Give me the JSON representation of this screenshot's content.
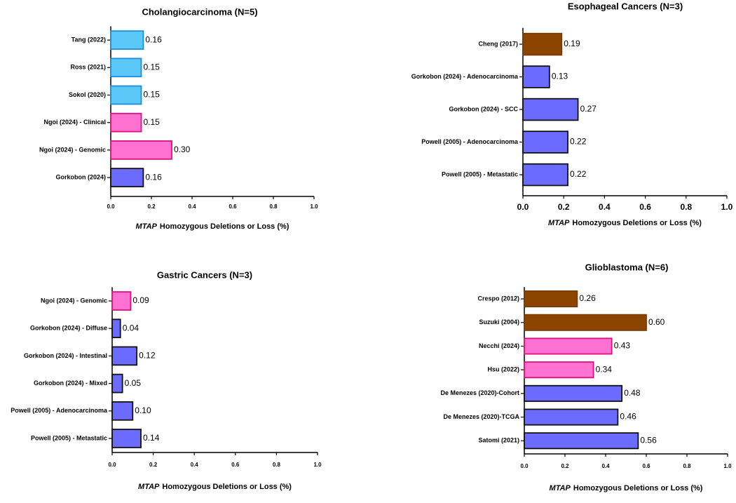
{
  "chart_data": [
    {
      "type": "bar",
      "orientation": "horizontal",
      "title": "Cholangiocarcinoma (N=5)",
      "categories": [
        "Tang (2022)",
        "Ross (2021)",
        "Sokol (2020)",
        "Ngoi (2024) - Clinical",
        "Ngoi (2024) - Genomic",
        "Gorkobon (2024)"
      ],
      "values": [
        0.16,
        0.15,
        0.15,
        0.15,
        0.3,
        0.16
      ],
      "value_labels": [
        "0.16",
        "0.15",
        "0.15",
        "0.15",
        "0.30",
        "0.16"
      ],
      "colors": [
        "#5cc8f7",
        "#5cc8f7",
        "#5cc8f7",
        "#ff72d2",
        "#ff72d2",
        "#6b6bff"
      ],
      "edgecolors": [
        "#1b8fd8",
        "#1b8fd8",
        "#1b8fd8",
        "#e0107f",
        "#e0107f",
        "#111111"
      ],
      "xlim": [
        0,
        1
      ],
      "xticks": [
        {
          "value": 0,
          "label": "0.0"
        },
        0.2,
        0.4,
        0.6,
        0.8,
        {
          "value": 1,
          "label": "1.0"
        }
      ],
      "xlabel": [
        "MTAP",
        "Homozygous Deletions or Loss (%)"
      ]
    },
    {
      "type": "bar",
      "orientation": "horizontal",
      "title": "Esophageal Cancers (N=3)",
      "categories": [
        "Cheng (2017)",
        "Gorkobon (2024) - Adenocarcinoma",
        "Gorkobon (2024) - SCC",
        "Powell (2005) - Adenocarcinoma",
        "Powell (2005) - Metastatic"
      ],
      "values": [
        0.19,
        0.13,
        0.27,
        0.22,
        0.22
      ],
      "value_labels": [
        "0.19",
        "0.13",
        "0.27",
        "0.22",
        "0.22"
      ],
      "colors": [
        "#8b4500",
        "#6b6bff",
        "#6b6bff",
        "#6b6bff",
        "#6b6bff"
      ],
      "edgecolors": [
        "#7a3c00",
        "#111111",
        "#111111",
        "#111111",
        "#111111"
      ],
      "xlim": [
        0,
        1
      ],
      "xticks": [
        {
          "value": 0,
          "label": "0.0"
        },
        0.2,
        0.4,
        0.6,
        0.8,
        {
          "value": 1,
          "label": "1.0"
        }
      ],
      "xlabel": [
        "MTAP",
        "Homozygous Deletions or Loss (%)"
      ]
    },
    {
      "type": "bar",
      "orientation": "horizontal",
      "title": "Gastric Cancers (N=3)",
      "categories": [
        "Ngoi (2024) - Genomic",
        "Gorkobon (2024) - Diffuse",
        "Gorkobon (2024) - Intestinal",
        "Gorkobon (2024) - Mixed",
        "Powell (2005) - Adenocarcinoma",
        "Powell (2005) - Metastatic"
      ],
      "values": [
        0.09,
        0.04,
        0.12,
        0.05,
        0.1,
        0.14
      ],
      "value_labels": [
        "0.09",
        "0.04",
        "0.12",
        "0.05",
        "0.10",
        "0.14"
      ],
      "colors": [
        "#ff72d2",
        "#6b6bff",
        "#6b6bff",
        "#6b6bff",
        "#6b6bff",
        "#6b6bff"
      ],
      "edgecolors": [
        "#e0107f",
        "#111111",
        "#111111",
        "#111111",
        "#111111",
        "#111111"
      ],
      "xlim": [
        0,
        1
      ],
      "xticks": [
        {
          "value": 0,
          "label": "0.0"
        },
        0.2,
        0.4,
        0.6,
        0.8,
        {
          "value": 1,
          "label": "1.0"
        }
      ],
      "xlabel": [
        "MTAP",
        "Homozygous Deletions or Loss (%)"
      ]
    },
    {
      "type": "bar",
      "orientation": "horizontal",
      "title": "Glioblastoma (N=6)",
      "categories": [
        "Crespo (2012)",
        "Suzuki (2004)",
        "Necchi (2024)",
        "Hsu (2022)",
        "De Menezes (2020)-Cohort",
        "De Menezes (2020)-TCGA",
        "Satomi (2021)"
      ],
      "values": [
        0.26,
        0.6,
        0.43,
        0.34,
        0.48,
        0.46,
        0.56
      ],
      "value_labels": [
        "0.26",
        "0.60",
        "0.43",
        "0.34",
        "0.48",
        "0.46",
        "0.56"
      ],
      "colors": [
        "#8b4500",
        "#8b4500",
        "#ff72d2",
        "#ff72d2",
        "#6b6bff",
        "#6b6bff",
        "#6b6bff"
      ],
      "edgecolors": [
        "#7a3c00",
        "#7a3c00",
        "#e0107f",
        "#e0107f",
        "#111111",
        "#111111",
        "#111111"
      ],
      "xlim": [
        0,
        1
      ],
      "xticks": [
        {
          "value": 0,
          "label": "0.0"
        },
        0.2,
        0.4,
        0.6,
        0.8,
        {
          "value": 1,
          "label": "1.0"
        }
      ],
      "xlabel": [
        "MTAP",
        "Homozygous Deletions or Loss (%)"
      ]
    }
  ]
}
